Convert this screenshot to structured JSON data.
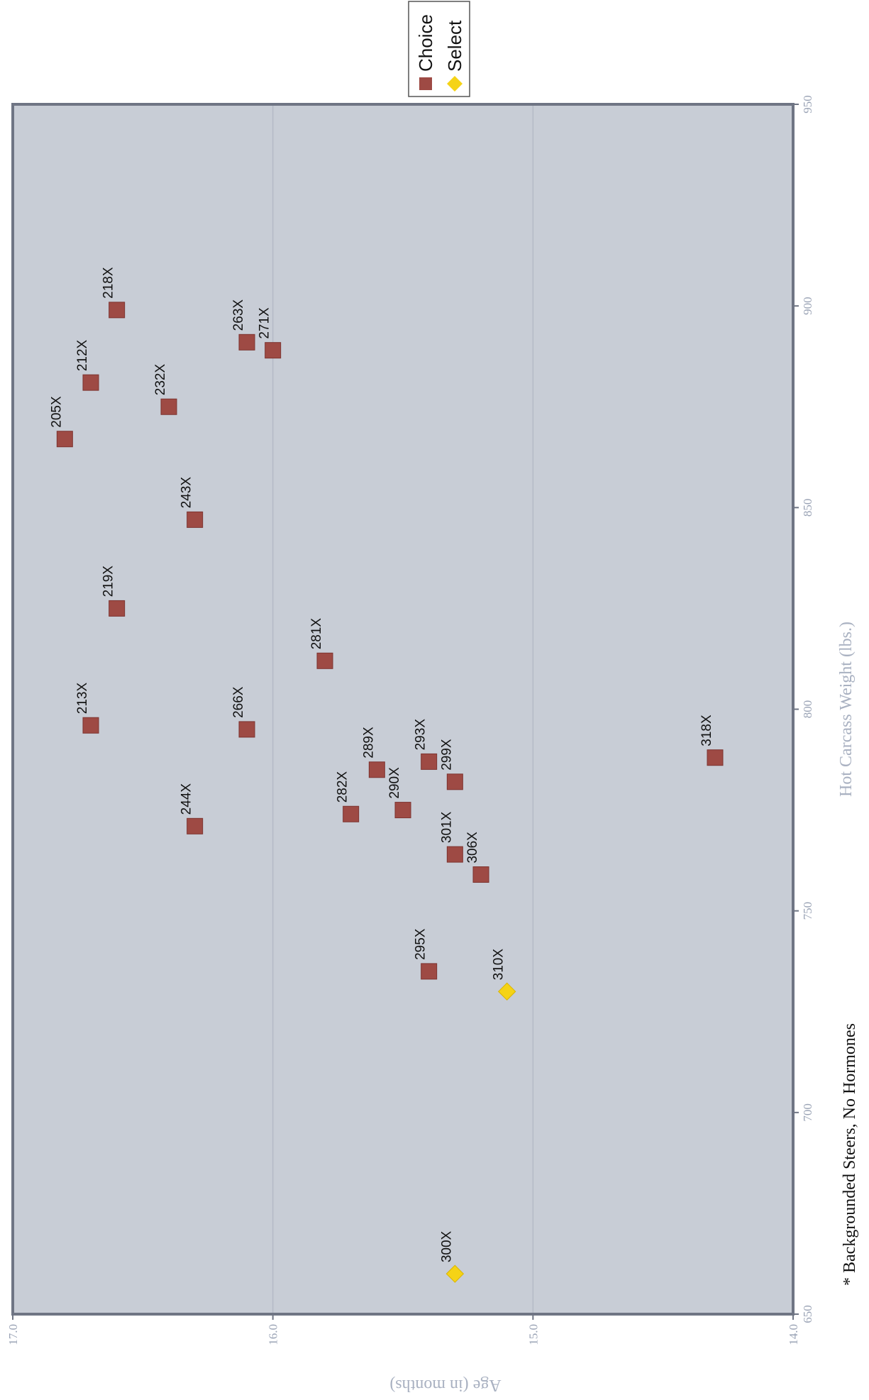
{
  "chart_data": {
    "type": "scatter",
    "title": "",
    "xlabel": "Hot Carcass Weight (lbs.)",
    "ylabel": "Age (in months)",
    "xlim": [
      650,
      950
    ],
    "ylim": [
      14.0,
      17.0
    ],
    "x_ticks": [
      "650",
      "700",
      "750",
      "800",
      "850",
      "900",
      "950"
    ],
    "y_ticks": [
      "14.0",
      "15.0",
      "16.0",
      "17.0"
    ],
    "grid": "horizontal lines at y ticks",
    "legend_position": "top-right",
    "orientation": "figure printed rotated 90 degrees",
    "series": [
      {
        "name": "Choice",
        "marker": "square",
        "color": "#9e4a44",
        "points": [
          {
            "label": "205X",
            "x": 867,
            "y": 16.8
          },
          {
            "label": "212X",
            "x": 881,
            "y": 16.7
          },
          {
            "label": "218X",
            "x": 899,
            "y": 16.6
          },
          {
            "label": "232X",
            "x": 875,
            "y": 16.4
          },
          {
            "label": "263X",
            "x": 891,
            "y": 16.1
          },
          {
            "label": "271X",
            "x": 889,
            "y": 16.0
          },
          {
            "label": "243X",
            "x": 847,
            "y": 16.3
          },
          {
            "label": "219X",
            "x": 825,
            "y": 16.6
          },
          {
            "label": "281X",
            "x": 812,
            "y": 15.8
          },
          {
            "label": "213X",
            "x": 796,
            "y": 16.7
          },
          {
            "label": "266X",
            "x": 795,
            "y": 16.1
          },
          {
            "label": "244X",
            "x": 771,
            "y": 16.3
          },
          {
            "label": "282X",
            "x": 774,
            "y": 15.7
          },
          {
            "label": "289X",
            "x": 785,
            "y": 15.6
          },
          {
            "label": "290X",
            "x": 775,
            "y": 15.5
          },
          {
            "label": "293X",
            "x": 787,
            "y": 15.4
          },
          {
            "label": "299X",
            "x": 782,
            "y": 15.3
          },
          {
            "label": "301X",
            "x": 764,
            "y": 15.3
          },
          {
            "label": "306X",
            "x": 759,
            "y": 15.2
          },
          {
            "label": "295X",
            "x": 735,
            "y": 15.4
          },
          {
            "label": "318X",
            "x": 788,
            "y": 14.3
          }
        ]
      },
      {
        "name": "Select",
        "marker": "diamond",
        "color": "#f5d316",
        "points": [
          {
            "label": "310X",
            "x": 730,
            "y": 15.1
          },
          {
            "label": "300X",
            "x": 660,
            "y": 15.3
          }
        ]
      }
    ],
    "annotation": "* Backgrounded Steers, No Hormones"
  }
}
